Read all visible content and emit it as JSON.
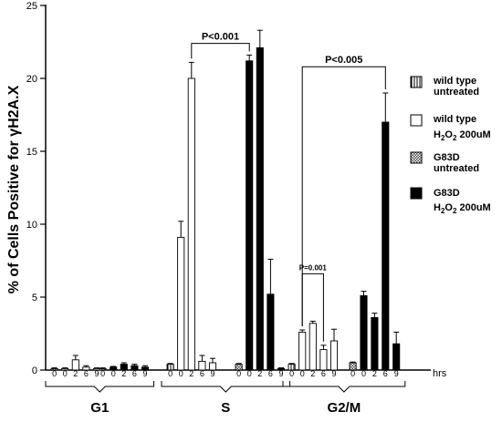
{
  "chart_data": {
    "type": "bar",
    "ylabel": "% of Cells Positive for γH2A.X",
    "ylabel_parts": {
      "pre": "% of Cells Positive for ",
      "greek": "γ",
      "post": "H2A.X"
    },
    "ylim": [
      0,
      25
    ],
    "yticks": [
      0,
      5,
      10,
      15,
      20,
      25
    ],
    "x_unit_label": "hrs",
    "phases": [
      "G1",
      "S",
      "G2/M"
    ],
    "timepoints": [
      "0",
      "0",
      "2",
      "6",
      "9"
    ],
    "grid": false,
    "legend_position": "right",
    "legend": [
      {
        "label": "wild type untreated",
        "line1": "wild type",
        "line2": "untreated",
        "fill": "vertical-hatch"
      },
      {
        "label": "wild type H2O2 200uM",
        "line1": "wild type",
        "line2_pre": "H",
        "line2_sub1": "2",
        "line2_mid": "O",
        "line2_sub2": "2",
        "line2_post": " 200uM",
        "fill": "#ffffff"
      },
      {
        "label": "G83D untreated",
        "line1": "G83D",
        "line2": "untreated",
        "fill": "crosshatch"
      },
      {
        "label": "G83D H2O2 200uM",
        "line1": "G83D",
        "line2_pre": "H",
        "line2_sub1": "2",
        "line2_mid": "O",
        "line2_sub2": "2",
        "line2_post": " 200uM",
        "fill": "#000000"
      }
    ],
    "series_note": "Each phase: wild type (untreated 0, H2O2 0/2/6/9 hrs), then G83D (untreated 0, H2O2 0/2/6/9 hrs)",
    "bars": [
      {
        "phase": "G1",
        "group": "wild type",
        "treatment": "untreated",
        "time": "0",
        "value": 0.1,
        "error": 0.05
      },
      {
        "phase": "G1",
        "group": "wild type",
        "treatment": "H2O2",
        "time": "0",
        "value": 0.1,
        "error": 0.05
      },
      {
        "phase": "G1",
        "group": "wild type",
        "treatment": "H2O2",
        "time": "2",
        "value": 0.7,
        "error": 0.3
      },
      {
        "phase": "G1",
        "group": "wild type",
        "treatment": "H2O2",
        "time": "6",
        "value": 0.2,
        "error": 0.1
      },
      {
        "phase": "G1",
        "group": "wild type",
        "treatment": "H2O2",
        "time": "9",
        "value": 0.1,
        "error": 0.05
      },
      {
        "phase": "G1",
        "group": "G83D",
        "treatment": "untreated",
        "time": "0",
        "value": 0.1,
        "error": 0.05
      },
      {
        "phase": "G1",
        "group": "G83D",
        "treatment": "H2O2",
        "time": "0",
        "value": 0.2,
        "error": 0.05
      },
      {
        "phase": "G1",
        "group": "G83D",
        "treatment": "H2O2",
        "time": "2",
        "value": 0.4,
        "error": 0.1
      },
      {
        "phase": "G1",
        "group": "G83D",
        "treatment": "H2O2",
        "time": "6",
        "value": 0.3,
        "error": 0.1
      },
      {
        "phase": "G1",
        "group": "G83D",
        "treatment": "H2O2",
        "time": "9",
        "value": 0.2,
        "error": 0.1
      },
      {
        "phase": "S",
        "group": "wild type",
        "treatment": "untreated",
        "time": "0",
        "value": 0.4,
        "error": 0.05
      },
      {
        "phase": "S",
        "group": "wild type",
        "treatment": "H2O2",
        "time": "0",
        "value": 9.1,
        "error": 1.1
      },
      {
        "phase": "S",
        "group": "wild type",
        "treatment": "H2O2",
        "time": "2",
        "value": 20.0,
        "error": 1.1
      },
      {
        "phase": "S",
        "group": "wild type",
        "treatment": "H2O2",
        "time": "6",
        "value": 0.6,
        "error": 0.4
      },
      {
        "phase": "S",
        "group": "wild type",
        "treatment": "H2O2",
        "time": "9",
        "value": 0.5,
        "error": 0.3
      },
      {
        "phase": "S",
        "group": "G83D",
        "treatment": "untreated",
        "time": "0",
        "value": 0.4,
        "error": 0.05
      },
      {
        "phase": "S",
        "group": "G83D",
        "treatment": "H2O2",
        "time": "0",
        "value": 21.2,
        "error": 0.4
      },
      {
        "phase": "S",
        "group": "G83D",
        "treatment": "H2O2",
        "time": "2",
        "value": 22.1,
        "error": 1.2
      },
      {
        "phase": "S",
        "group": "G83D",
        "treatment": "H2O2",
        "time": "6",
        "value": 5.2,
        "error": 2.4
      },
      {
        "phase": "S",
        "group": "G83D",
        "treatment": "H2O2",
        "time": "9",
        "value": 0.1,
        "error": 0.05
      },
      {
        "phase": "G2/M",
        "group": "wild type",
        "treatment": "untreated",
        "time": "0",
        "value": 0.4,
        "error": 0.05
      },
      {
        "phase": "G2/M",
        "group": "wild type",
        "treatment": "H2O2",
        "time": "0",
        "value": 2.6,
        "error": 0.15
      },
      {
        "phase": "G2/M",
        "group": "wild type",
        "treatment": "H2O2",
        "time": "2",
        "value": 3.2,
        "error": 0.15
      },
      {
        "phase": "G2/M",
        "group": "wild type",
        "treatment": "H2O2",
        "time": "6",
        "value": 1.4,
        "error": 0.3
      },
      {
        "phase": "G2/M",
        "group": "wild type",
        "treatment": "H2O2",
        "time": "9",
        "value": 2.0,
        "error": 0.8
      },
      {
        "phase": "G2/M",
        "group": "G83D",
        "treatment": "untreated",
        "time": "0",
        "value": 0.5,
        "error": 0.05
      },
      {
        "phase": "G2/M",
        "group": "G83D",
        "treatment": "H2O2",
        "time": "0",
        "value": 5.1,
        "error": 0.3
      },
      {
        "phase": "G2/M",
        "group": "G83D",
        "treatment": "H2O2",
        "time": "2",
        "value": 3.6,
        "error": 0.3
      },
      {
        "phase": "G2/M",
        "group": "G83D",
        "treatment": "H2O2",
        "time": "6",
        "value": 17.0,
        "error": 2.0
      },
      {
        "phase": "G2/M",
        "group": "G83D",
        "treatment": "H2O2",
        "time": "9",
        "value": 1.8,
        "error": 0.8
      }
    ],
    "annotations": [
      {
        "text": "P<0.001",
        "from_bar": 12,
        "to_bar": 16,
        "bracket_y": 22.4,
        "label_y": 22.6
      },
      {
        "text": "P<0.005",
        "from_bar": 21,
        "to_bar": 28,
        "bracket_y": 20.8,
        "label_y": 21.0
      },
      {
        "text": "P=0.001",
        "from_bar": 21,
        "to_bar": 23,
        "bracket_y": 6.6,
        "label_y": 6.8,
        "small": true
      }
    ]
  }
}
